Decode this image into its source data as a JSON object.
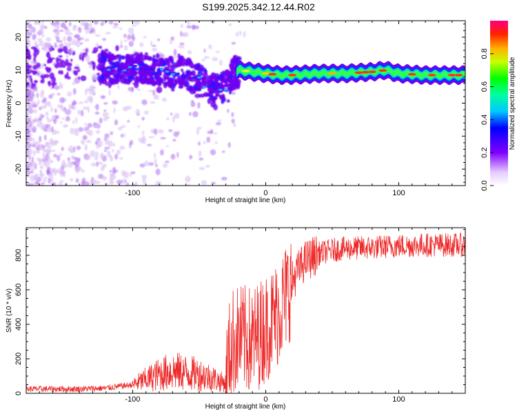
{
  "title": "S199.2025.342.12.44.R02",
  "chart_data": [
    {
      "type": "heatmap",
      "xlabel": "Height of straight line (km)",
      "ylabel": "Frequency (Hz)",
      "xlim": [
        -180,
        150
      ],
      "ylim": [
        -25,
        25
      ],
      "x_ticks": [
        -100,
        0,
        100
      ],
      "y_ticks": [
        -20,
        -10,
        0,
        10,
        20
      ],
      "colorbar": {
        "label": "Normalized spectral amplitude",
        "range": [
          0.0,
          1.0
        ],
        "ticks": [
          "0.0",
          "0.2",
          "0.4",
          "0.6",
          "0.8"
        ]
      },
      "ridge": {
        "x": [
          -120,
          -100,
          -80,
          -60,
          -50,
          -40,
          -30,
          -25,
          -20,
          -10,
          0,
          10,
          20,
          40,
          60,
          80,
          90,
          100,
          120,
          150
        ],
        "frequency": [
          11,
          10.5,
          10,
          9,
          7,
          4,
          5,
          9,
          10,
          9.5,
          9,
          8.5,
          8.5,
          9,
          9,
          9.5,
          10,
          9,
          8.5,
          8.5
        ]
      }
    },
    {
      "type": "line",
      "xlabel": "Height of straight line (km)",
      "ylabel": "SNR (10 * v/v)",
      "xlim": [
        -180,
        150
      ],
      "ylim": [
        0,
        960
      ],
      "x_ticks": [
        -100,
        0,
        100
      ],
      "y_ticks": [
        0,
        200,
        400,
        600,
        800
      ],
      "color": "#ee2a2a",
      "trend": {
        "x": [
          -180,
          -140,
          -120,
          -100,
          -90,
          -80,
          -70,
          -60,
          -50,
          -40,
          -35,
          -30,
          -28,
          -25,
          -20,
          -15,
          -10,
          -5,
          0,
          5,
          10,
          15,
          20,
          25,
          30,
          40,
          50,
          60,
          80,
          100,
          120,
          150
        ],
        "y": [
          25,
          25,
          30,
          50,
          80,
          110,
          130,
          120,
          110,
          90,
          70,
          60,
          200,
          300,
          320,
          310,
          300,
          340,
          380,
          420,
          480,
          560,
          650,
          720,
          770,
          810,
          830,
          840,
          845,
          855,
          860,
          860
        ]
      }
    }
  ]
}
